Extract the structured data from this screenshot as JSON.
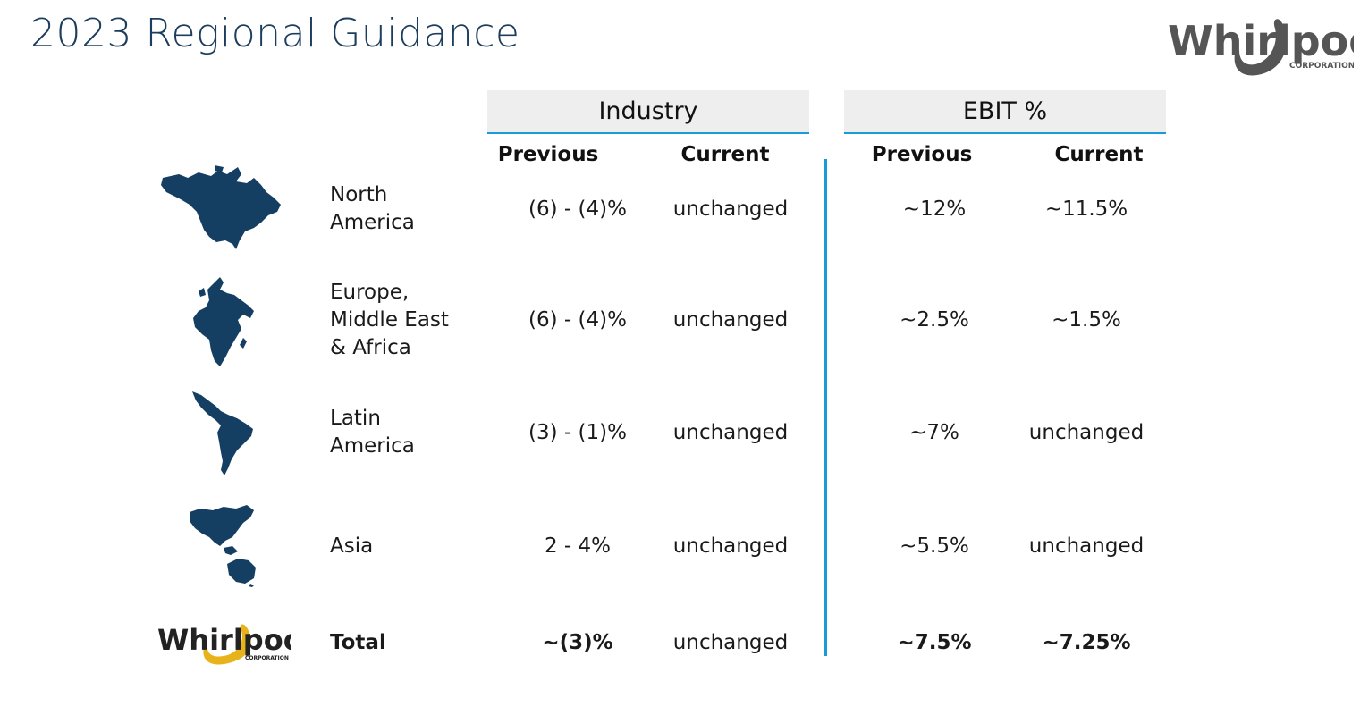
{
  "title": "2023 Regional Guidance",
  "brand": {
    "logo_text": "Whirlpool",
    "logo_subtext": "CORPORATION",
    "color_navy": "#1c3d5e",
    "color_accent": "#1a9ad6",
    "color_map": "#143f63",
    "color_logo_gray": "#555555",
    "color_logo_gold": "#e8b21a"
  },
  "groups": {
    "industry": "Industry",
    "ebit": "EBIT %"
  },
  "columns": {
    "industry_previous": "Previous",
    "industry_current": "Current",
    "ebit_previous": "Previous",
    "ebit_current": "Current"
  },
  "rows": [
    {
      "icon": "north-america-map-icon",
      "label_lines": [
        "North",
        "America"
      ],
      "industry_previous": "(6) - (4)%",
      "industry_current": "unchanged",
      "ebit_previous": "~12%",
      "ebit_current": "~11.5%"
    },
    {
      "icon": "emea-map-icon",
      "label_lines": [
        "Europe,",
        "Middle East",
        "& Africa"
      ],
      "industry_previous": "(6) - (4)%",
      "industry_current": "unchanged",
      "ebit_previous": "~2.5%",
      "ebit_current": "~1.5%"
    },
    {
      "icon": "latin-america-map-icon",
      "label_lines": [
        "Latin",
        "America"
      ],
      "industry_previous": "(3) - (1)%",
      "industry_current": "unchanged",
      "ebit_previous": "~7%",
      "ebit_current": "unchanged"
    },
    {
      "icon": "asia-map-icon",
      "label_lines": [
        "Asia"
      ],
      "industry_previous": "2 - 4%",
      "industry_current": "unchanged",
      "ebit_previous": "~5.5%",
      "ebit_current": "unchanged"
    }
  ],
  "total": {
    "label": "Total",
    "industry_previous": "~(3)%",
    "industry_current": "unchanged",
    "ebit_previous": "~7.5%",
    "ebit_current": "~7.25%"
  }
}
